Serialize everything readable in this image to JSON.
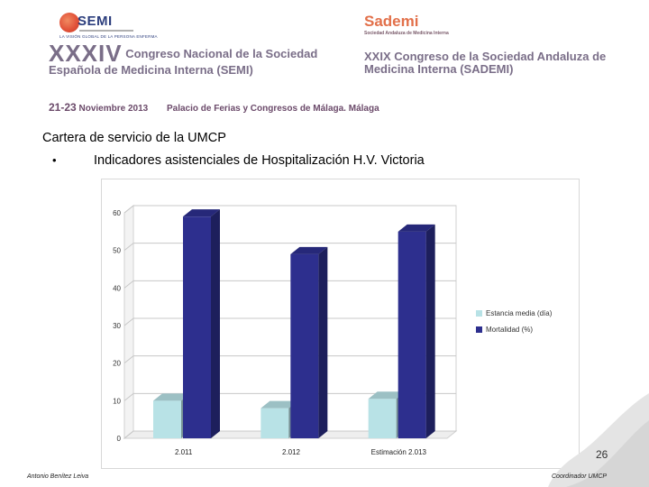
{
  "header": {
    "semi_logo_text": "SEMI",
    "semi_tagline": "LA VISIÓN GLOBAL DE LA PERSONA ENFERMA",
    "sademi_logo_text": "Sademi",
    "sademi_logo_subtext": "Sociedad Andaluza de Medicina Interna",
    "left_congress_number": "XXXIV",
    "left_congress_title": "Congreso Nacional de la Sociedad Española de Medicina Interna (SEMI)",
    "right_congress_title": "XXIX Congreso de la Sociedad Andaluza de Medicina Interna (SADEMI)",
    "dates": "21-23",
    "month_year": "Noviembre 2013",
    "venue": "Palacio de Ferias y Congresos de Málaga.",
    "city": "Málaga"
  },
  "slide": {
    "title": "Cartera de servicio de la UMCP",
    "bullet_symbol": "•",
    "bullet_text": "Indicadores asistenciales de Hospitalización H.V. Victoria"
  },
  "chart_data": {
    "type": "bar",
    "categories": [
      "2.011",
      "2.012",
      "Estimación 2.013"
    ],
    "series": [
      {
        "name": "Estancia media (día)",
        "values": [
          10,
          8,
          10.5
        ],
        "color": "#b8e2e6"
      },
      {
        "name": "Mortalidad (%)",
        "values": [
          59,
          49,
          55
        ],
        "color": "#2d2f8e"
      }
    ],
    "yticks": [
      0,
      10,
      20,
      30,
      40,
      50,
      60
    ],
    "ylim": [
      0,
      60
    ],
    "grid": true,
    "three_d": true,
    "legend_position": "right"
  },
  "footer": {
    "page_number": "26",
    "author": "Antonio Benítez Leiva",
    "role": "Coordinador UMCP"
  },
  "colors": {
    "congress_text": "#7a6e88",
    "semi_blue": "#2c3e7d",
    "sademi_orange": "#e2704a"
  }
}
